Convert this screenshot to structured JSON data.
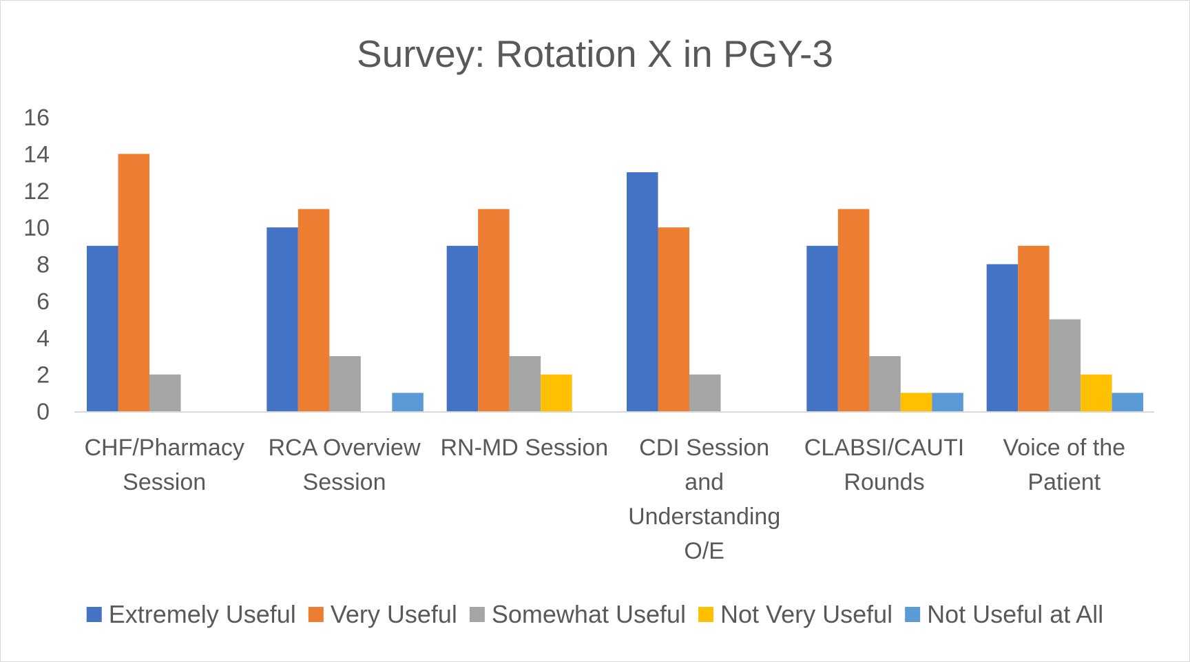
{
  "chart_data": {
    "type": "bar",
    "title": "Survey: Rotation X in PGY-3",
    "xlabel": "",
    "ylabel": "",
    "ylim": [
      0,
      16
    ],
    "yticks": [
      0,
      2,
      4,
      6,
      8,
      10,
      12,
      14,
      16
    ],
    "grid": false,
    "legend_position": "bottom",
    "categories": [
      [
        "CHF/Pharmacy",
        "Session"
      ],
      [
        "RCA Overview",
        "Session"
      ],
      [
        "RN-MD Session"
      ],
      [
        "CDI Session",
        "and",
        "Understanding",
        "O/E"
      ],
      [
        "CLABSI/CAUTI",
        "Rounds"
      ],
      [
        "Voice of the",
        "Patient"
      ]
    ],
    "series": [
      {
        "name": "Extremely Useful",
        "color": "#4472C4",
        "values": [
          9,
          10,
          9,
          13,
          9,
          8
        ]
      },
      {
        "name": "Very Useful",
        "color": "#ED7D31",
        "values": [
          14,
          11,
          11,
          10,
          11,
          9
        ]
      },
      {
        "name": "Somewhat Useful",
        "color": "#A5A5A5",
        "values": [
          2,
          3,
          3,
          2,
          3,
          5
        ]
      },
      {
        "name": "Not Very Useful",
        "color": "#FFC000",
        "values": [
          0,
          0,
          2,
          0,
          1,
          2
        ]
      },
      {
        "name": "Not Useful at All",
        "color": "#5B9BD5",
        "values": [
          0,
          1,
          0,
          0,
          1,
          1
        ]
      }
    ]
  }
}
